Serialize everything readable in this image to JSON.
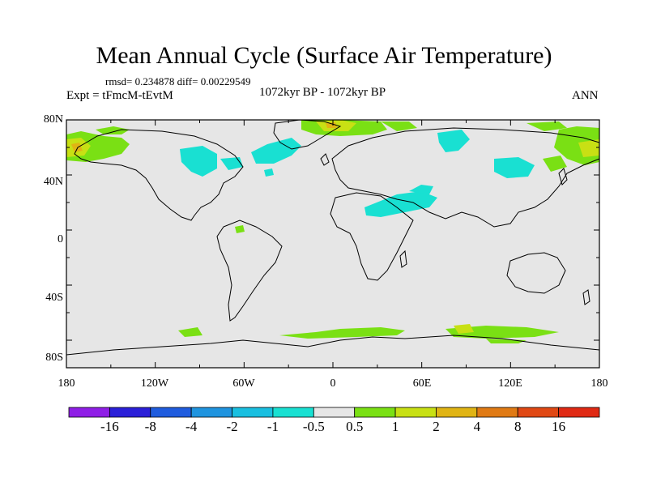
{
  "title": "Mean Annual Cycle (Surface Air Temperature)",
  "stats": "rmsd= 0.234878 diff= 0.00229549",
  "experiment": "Expt = tFmcM-tEvtM",
  "period": "1072kyr BP - 1072kyr BP",
  "season": "ANN",
  "y_ticks": [
    "80N",
    "40N",
    "0",
    "40S",
    "80S"
  ],
  "x_ticks": [
    "180",
    "120W",
    "60W",
    "0",
    "60E",
    "120E",
    "180"
  ],
  "colorbar": {
    "labels": [
      "-16",
      "-8",
      "-4",
      "-2",
      "-1",
      "-0.5",
      "0.5",
      "1",
      "2",
      "4",
      "8",
      "16"
    ],
    "colors": [
      "#8f1ee6",
      "#2b1fd8",
      "#1f5cde",
      "#1f94df",
      "#19bfe0",
      "#19e0d2",
      "#e6e6e6",
      "#7ae014",
      "#c8e014",
      "#e0b414",
      "#e07a14",
      "#e04814",
      "#e02a14"
    ]
  },
  "colors": {
    "background_field": "#e6e6e6",
    "negative_anomaly": "#19e0d2",
    "positive_weak": "#7ae014",
    "positive_mid": "#c8e014",
    "positive_strong": "#e0b414"
  }
}
